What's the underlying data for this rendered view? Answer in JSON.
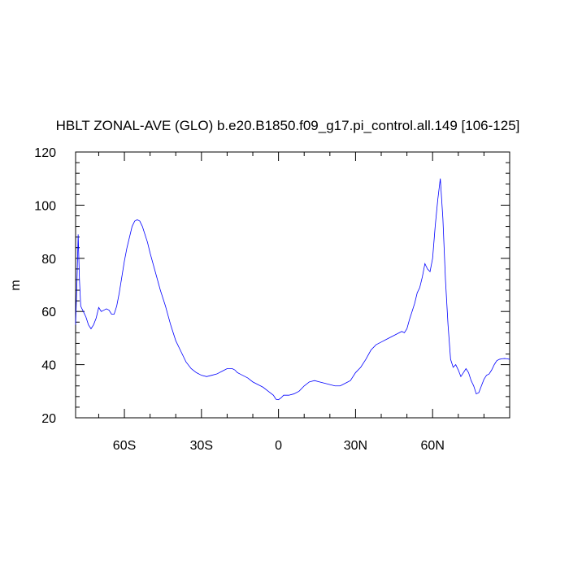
{
  "chart_data": {
    "type": "line",
    "title": "HBLT ZONAL-AVE (GLO) b.e20.B1850.f09_g17.pi_control.all.149 [106-125]",
    "ylabel": "m",
    "xlabel": "",
    "xlim": [
      -79,
      90
    ],
    "ylim": [
      20,
      120
    ],
    "x_ticks": [
      {
        "value": -60,
        "label": "60S"
      },
      {
        "value": -30,
        "label": "30S"
      },
      {
        "value": 0,
        "label": "0"
      },
      {
        "value": 30,
        "label": "30N"
      },
      {
        "value": 60,
        "label": "60N"
      }
    ],
    "y_ticks": [
      {
        "value": 20,
        "label": "20"
      },
      {
        "value": 40,
        "label": "40"
      },
      {
        "value": 60,
        "label": "60"
      },
      {
        "value": 80,
        "label": "80"
      },
      {
        "value": 100,
        "label": "100"
      },
      {
        "value": 120,
        "label": "120"
      }
    ],
    "line_color": "#0000ff",
    "series": [
      {
        "x": [
          -79,
          -78.5,
          -78,
          -77.5,
          -77,
          -76,
          -75,
          -74,
          -73,
          -72,
          -71,
          -70,
          -69,
          -68,
          -67,
          -66,
          -65,
          -64,
          -63,
          -62,
          -61,
          -60,
          -59,
          -58,
          -57,
          -56,
          -55,
          -54,
          -53,
          -52,
          -51,
          -50,
          -48,
          -46,
          -44,
          -42,
          -40,
          -38,
          -36,
          -34,
          -32,
          -30,
          -28,
          -26,
          -24,
          -22,
          -20,
          -18,
          -17,
          -16,
          -15,
          -14,
          -12,
          -10,
          -8,
          -6,
          -4,
          -2,
          -1,
          0,
          1,
          2,
          3,
          4,
          6,
          8,
          10,
          12,
          14,
          16,
          18,
          20,
          22,
          24,
          26,
          28,
          30,
          32,
          34,
          36,
          38,
          40,
          42,
          44,
          46,
          48,
          49,
          50,
          51,
          52,
          53,
          54,
          55,
          56,
          57,
          58,
          59,
          60,
          61,
          62,
          63,
          64,
          65,
          66,
          67,
          68,
          69,
          70,
          71,
          72,
          73,
          74,
          75,
          76,
          77,
          78,
          79,
          80,
          81,
          82,
          83,
          84,
          85,
          86,
          87,
          88,
          89,
          90
        ],
        "values": [
          55,
          70,
          89,
          72,
          62,
          60,
          58,
          55,
          53.5,
          55,
          57.5,
          61.5,
          60,
          60.5,
          61,
          60.5,
          59,
          59,
          62,
          67,
          73,
          79,
          84,
          88,
          92,
          94,
          94.5,
          94,
          92,
          89,
          86,
          82,
          75,
          68,
          62,
          55,
          49,
          45,
          41,
          38.5,
          37,
          36,
          35.5,
          36,
          36.5,
          37.5,
          38.5,
          38.5,
          38,
          37,
          36.5,
          36,
          35,
          33.5,
          32.5,
          31.5,
          30,
          28.5,
          27,
          26.8,
          27.5,
          28.5,
          28.5,
          28.5,
          29,
          30,
          32,
          33.5,
          34,
          33.5,
          33,
          32.5,
          32,
          32,
          33,
          34,
          37,
          39,
          42,
          45.5,
          47.5,
          48.5,
          49.5,
          50.5,
          51.5,
          52.5,
          52,
          53.5,
          57,
          60,
          63,
          67,
          69,
          73,
          78,
          76,
          75,
          80,
          92,
          102,
          110,
          95,
          72,
          55,
          42,
          39,
          40,
          38,
          35.5,
          37,
          38.5,
          37,
          34,
          32,
          29,
          29.5,
          32,
          34.5,
          36,
          36.5,
          38,
          40,
          41.5,
          42,
          42.2,
          42.3,
          42.2,
          42
        ]
      }
    ]
  }
}
